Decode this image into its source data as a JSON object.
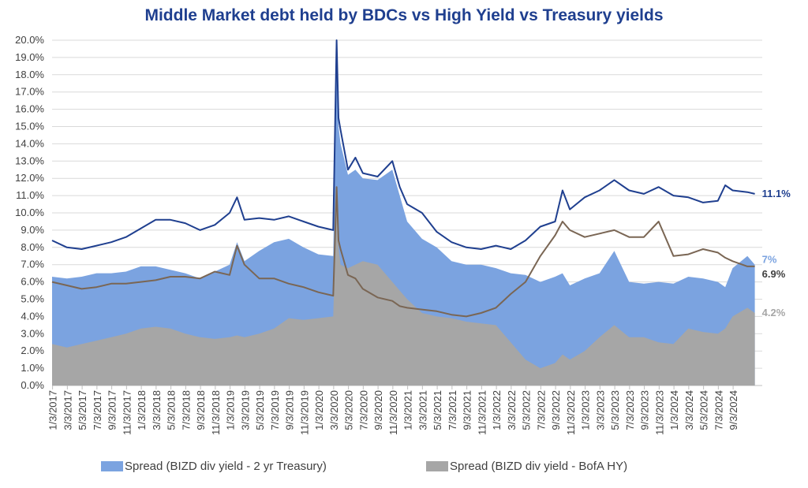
{
  "chart_data": {
    "type": "area",
    "title": "Middle Market debt held by BDCs vs High Yield vs Treasury yields",
    "xlabel": "",
    "ylabel": "",
    "ylim": [
      0,
      20
    ],
    "y_tick_format": "percent_1dp",
    "y_ticks": [
      "0.0%",
      "1.0%",
      "2.0%",
      "3.0%",
      "4.0%",
      "5.0%",
      "6.0%",
      "7.0%",
      "8.0%",
      "9.0%",
      "10.0%",
      "11.0%",
      "12.0%",
      "13.0%",
      "14.0%",
      "15.0%",
      "16.0%",
      "17.0%",
      "18.0%",
      "19.0%",
      "20.0%"
    ],
    "x_ticks": [
      "1/3/2017",
      "3/3/2017",
      "5/3/2017",
      "7/3/2017",
      "9/3/2017",
      "11/3/2017",
      "1/3/2018",
      "3/3/2018",
      "5/3/2018",
      "7/3/2018",
      "9/3/2018",
      "11/3/2018",
      "1/3/2019",
      "3/3/2019",
      "5/3/2019",
      "7/3/2019",
      "9/3/2019",
      "11/3/2019",
      "1/3/2020",
      "3/3/2020",
      "5/3/2020",
      "7/3/2020",
      "9/3/2020",
      "11/3/2020",
      "1/3/2021",
      "3/3/2021",
      "5/3/2021",
      "7/3/2021",
      "9/3/2021",
      "11/3/2021",
      "1/3/2022",
      "3/3/2022",
      "5/3/2022",
      "7/3/2022",
      "9/3/2022",
      "11/3/2022",
      "1/3/2023",
      "3/3/2023",
      "5/3/2023",
      "7/3/2023",
      "9/3/2023",
      "11/3/2023",
      "1/3/2024",
      "3/3/2024",
      "5/3/2024",
      "7/3/2024",
      "9/3/2024"
    ],
    "x": [
      "2017-01",
      "2017-03",
      "2017-05",
      "2017-07",
      "2017-09",
      "2017-11",
      "2018-01",
      "2018-03",
      "2018-05",
      "2018-07",
      "2018-09",
      "2018-11",
      "2019-01",
      "2019-02",
      "2019-03",
      "2019-05",
      "2019-07",
      "2019-09",
      "2019-11",
      "2020-01",
      "2020-03-01",
      "2020-03-15",
      "2020-03-23",
      "2020-04",
      "2020-05",
      "2020-06",
      "2020-07",
      "2020-09",
      "2020-11",
      "2020-12",
      "2021-01",
      "2021-03",
      "2021-05",
      "2021-07",
      "2021-09",
      "2021-11",
      "2022-01",
      "2022-03",
      "2022-05",
      "2022-07",
      "2022-09",
      "2022-10",
      "2022-11",
      "2023-01",
      "2023-03",
      "2023-05",
      "2023-07",
      "2023-09",
      "2023-11",
      "2024-01",
      "2024-03",
      "2024-05",
      "2024-07",
      "2024-08",
      "2024-09",
      "2024-11",
      "2024-12"
    ],
    "series": [
      {
        "name": "",
        "kind": "line",
        "color": "#1F3F8F",
        "end_label": "11.1%",
        "values": [
          8.4,
          8.0,
          7.9,
          8.1,
          8.3,
          8.6,
          9.1,
          9.6,
          9.6,
          9.4,
          9.0,
          9.3,
          10.0,
          10.9,
          9.6,
          9.7,
          9.6,
          9.8,
          9.5,
          9.2,
          9.0,
          20.0,
          15.5,
          14.8,
          12.5,
          13.2,
          12.3,
          12.1,
          13.0,
          11.5,
          10.5,
          10.0,
          8.9,
          8.3,
          8.0,
          7.9,
          8.1,
          7.9,
          8.4,
          9.2,
          9.5,
          11.3,
          10.2,
          10.9,
          11.3,
          11.9,
          11.3,
          11.1,
          11.5,
          11.0,
          10.9,
          10.6,
          10.7,
          11.6,
          11.3,
          11.2,
          11.1
        ]
      },
      {
        "name": "",
        "kind": "line",
        "color": "#7A6654",
        "end_label": "6.9%",
        "values": [
          6.0,
          5.8,
          5.6,
          5.7,
          5.9,
          5.9,
          6.0,
          6.1,
          6.3,
          6.3,
          6.2,
          6.6,
          6.4,
          8.1,
          7.0,
          6.2,
          6.2,
          5.9,
          5.7,
          5.4,
          5.2,
          11.5,
          8.4,
          7.9,
          6.4,
          6.2,
          5.6,
          5.1,
          4.9,
          4.6,
          4.5,
          4.4,
          4.3,
          4.1,
          4.0,
          4.2,
          4.5,
          5.3,
          6.0,
          7.5,
          8.7,
          9.5,
          9.0,
          8.6,
          8.8,
          9.0,
          8.6,
          8.6,
          9.5,
          7.5,
          7.6,
          7.9,
          7.7,
          7.4,
          7.2,
          6.9,
          6.9
        ]
      },
      {
        "name": "Spread (BIZD div yield - 2 yr Treasury)",
        "kind": "area",
        "color": "#7BA3E0",
        "end_label": "7%",
        "values": [
          6.3,
          6.2,
          6.3,
          6.5,
          6.5,
          6.6,
          6.9,
          6.9,
          6.7,
          6.5,
          6.2,
          6.6,
          7.0,
          8.3,
          7.2,
          7.8,
          8.3,
          8.5,
          8.0,
          7.6,
          7.5,
          19.5,
          15.0,
          14.0,
          12.2,
          12.5,
          12.0,
          11.9,
          12.5,
          11.0,
          9.5,
          8.5,
          8.0,
          7.2,
          7.0,
          7.0,
          6.8,
          6.5,
          6.4,
          6.0,
          6.3,
          6.5,
          5.8,
          6.2,
          6.5,
          7.8,
          6.0,
          5.9,
          6.0,
          5.9,
          6.3,
          6.2,
          6.0,
          5.7,
          6.8,
          7.5,
          7.0
        ]
      },
      {
        "name": "Spread (BIZD div yield - BofA HY)",
        "kind": "area",
        "color": "#A6A6A6",
        "end_label": "4.2%",
        "values": [
          2.4,
          2.2,
          2.4,
          2.6,
          2.8,
          3.0,
          3.3,
          3.4,
          3.3,
          3.0,
          2.8,
          2.7,
          2.8,
          2.9,
          2.8,
          3.0,
          3.3,
          3.9,
          3.8,
          3.9,
          4.0,
          11.0,
          8.0,
          7.0,
          6.8,
          7.0,
          7.2,
          7.0,
          6.0,
          5.5,
          5.0,
          4.2,
          4.0,
          3.9,
          3.7,
          3.6,
          3.5,
          2.5,
          1.5,
          1.0,
          1.3,
          1.8,
          1.5,
          2.0,
          2.8,
          3.5,
          2.8,
          2.8,
          2.5,
          2.4,
          3.3,
          3.1,
          3.0,
          3.3,
          4.0,
          4.5,
          4.2
        ]
      }
    ],
    "legend": "bottom"
  }
}
